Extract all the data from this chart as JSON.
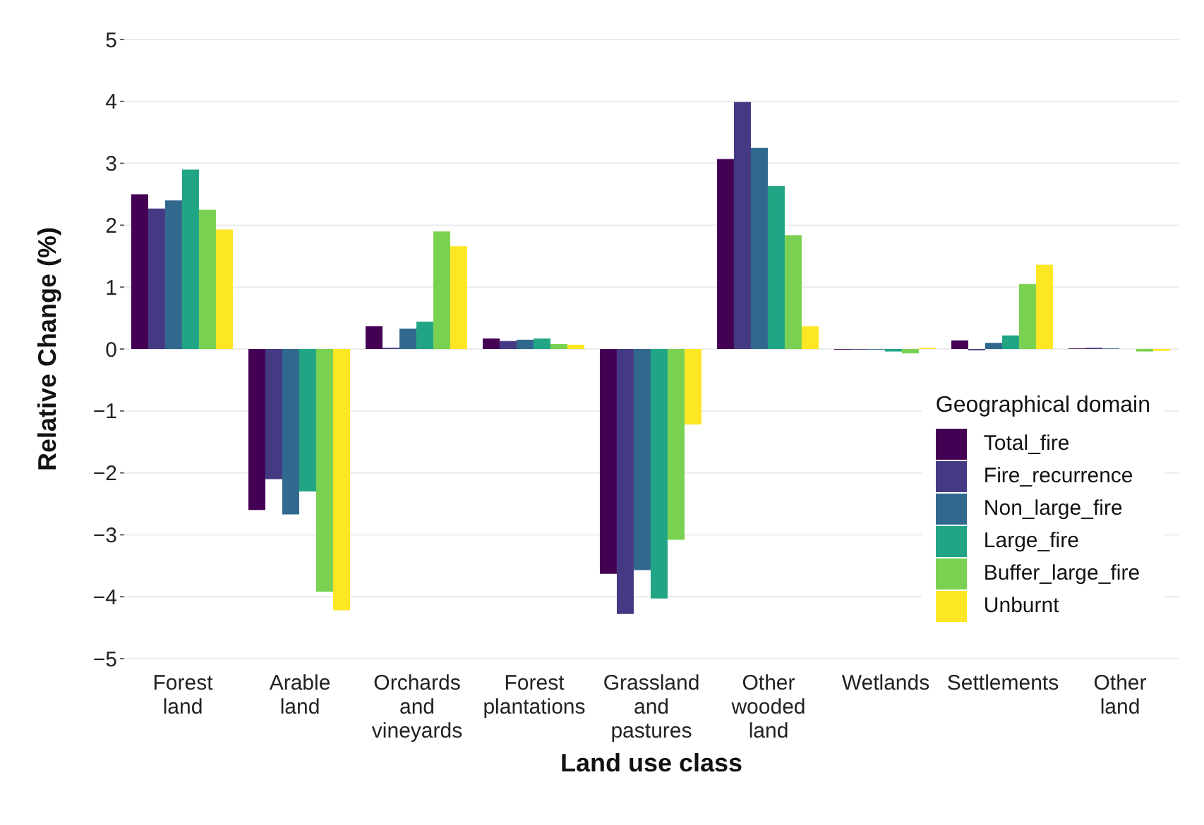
{
  "chart_data": {
    "type": "bar",
    "xlabel": "Land use class",
    "ylabel": "Relative Change (%)",
    "legend_title": "Geographical domain",
    "categories": [
      "Forest\nland",
      "Arable\nland",
      "Orchards\nand\nvineyards",
      "Forest\nplantations",
      "Grassland\nand\npastures",
      "Other\nwooded\nland",
      "Wetlands",
      "Settlements",
      "Other\nland"
    ],
    "series": [
      {
        "name": "Total_fire",
        "color": "#440154",
        "values": [
          2.5,
          -2.6,
          0.37,
          0.17,
          -3.63,
          3.07,
          -0.01,
          0.14,
          0.01
        ]
      },
      {
        "name": "Fire_recurrence",
        "color": "#443a83",
        "values": [
          2.27,
          -2.1,
          0.02,
          0.13,
          -4.28,
          3.99,
          -0.01,
          -0.02,
          0.02
        ]
      },
      {
        "name": "Non_large_fire",
        "color": "#31688e",
        "values": [
          2.4,
          -2.67,
          0.33,
          0.15,
          -3.57,
          3.25,
          -0.01,
          0.1,
          0.01
        ]
      },
      {
        "name": "Large_fire",
        "color": "#21a585",
        "values": [
          2.9,
          -2.3,
          0.44,
          0.17,
          -4.03,
          2.63,
          -0.04,
          0.22,
          0
        ]
      },
      {
        "name": "Buffer_large_fire",
        "color": "#7ad151",
        "values": [
          2.25,
          -3.92,
          1.9,
          0.08,
          -3.08,
          1.84,
          -0.07,
          1.05,
          -0.04
        ]
      },
      {
        "name": "Unburnt",
        "color": "#fde725",
        "values": [
          1.93,
          -4.22,
          1.66,
          0.07,
          -1.22,
          0.37,
          0.02,
          1.36,
          -0.03
        ]
      }
    ],
    "ylim": [
      -5,
      5
    ],
    "yticks": [
      -5,
      -4,
      -3,
      -2,
      -1,
      0,
      1,
      2,
      3,
      4,
      5
    ],
    "grid": "y",
    "legend": "bottom right"
  }
}
